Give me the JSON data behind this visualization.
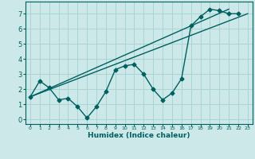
{
  "xlabel": "Humidex (Indice chaleur)",
  "ylabel": "",
  "bg_color": "#cce8e8",
  "grid_color": "#aad4d4",
  "line_color": "#006060",
  "xlim": [
    -0.5,
    23.5
  ],
  "ylim": [
    -0.3,
    7.8
  ],
  "xticks": [
    0,
    1,
    2,
    3,
    4,
    5,
    6,
    7,
    8,
    9,
    10,
    11,
    12,
    13,
    14,
    15,
    16,
    17,
    18,
    19,
    20,
    21,
    22,
    23
  ],
  "yticks": [
    0,
    1,
    2,
    3,
    4,
    5,
    6,
    7
  ],
  "line1_x": [
    0,
    1,
    2,
    3,
    4,
    5,
    6,
    7,
    8,
    9,
    10,
    11,
    12,
    13,
    14,
    15,
    16,
    17,
    18,
    19,
    20,
    21,
    22
  ],
  "line1_y": [
    1.5,
    2.55,
    2.1,
    1.3,
    1.4,
    0.85,
    0.1,
    0.85,
    1.85,
    3.3,
    3.55,
    3.65,
    3.0,
    2.0,
    1.3,
    1.75,
    2.7,
    6.2,
    6.8,
    7.3,
    7.2,
    7.0,
    7.0
  ],
  "line2_x": [
    0,
    21
  ],
  "line2_y": [
    1.5,
    7.3
  ],
  "line3_x": [
    0,
    23
  ],
  "line3_y": [
    1.5,
    7.0
  ]
}
